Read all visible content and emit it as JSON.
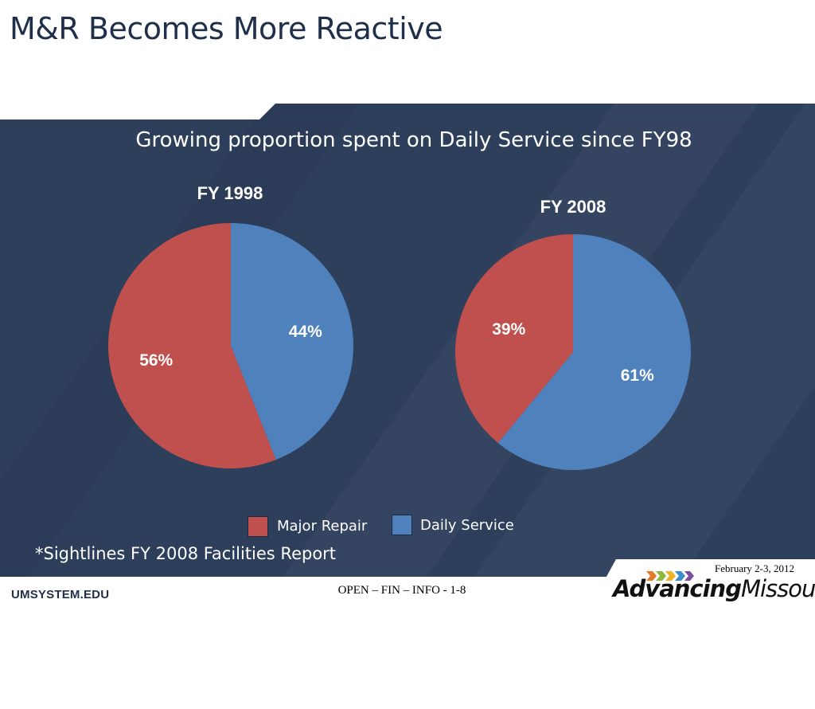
{
  "slide": {
    "title": "M&R Becomes More Reactive",
    "subtitle": "Growing proportion spent on Daily Service since FY98",
    "footnote": "*Sightlines FY 2008 Facilities Report"
  },
  "chart_data": [
    {
      "type": "pie",
      "title": "FY 1998",
      "categories": [
        "Major Repair",
        "Daily Service"
      ],
      "values": [
        56,
        44
      ],
      "labels": [
        "56%",
        "44%"
      ],
      "colors": [
        "#c0504d",
        "#4f81bd"
      ]
    },
    {
      "type": "pie",
      "title": "FY 2008",
      "categories": [
        "Major Repair",
        "Daily Service"
      ],
      "values": [
        39,
        61
      ],
      "labels": [
        "39%",
        "61%"
      ],
      "colors": [
        "#c0504d",
        "#4f81bd"
      ]
    }
  ],
  "legend": {
    "items": [
      {
        "label": "Major Repair",
        "color": "#c0504d"
      },
      {
        "label": "Daily Service",
        "color": "#4f81bd"
      }
    ]
  },
  "footer": {
    "site": "UMSYSTEM.EDU",
    "center": "OPEN – FIN – INFO - 1-8",
    "date": "February 2-3, 2012",
    "logo_bold": "Advancing",
    "logo_light": "Missouri"
  }
}
